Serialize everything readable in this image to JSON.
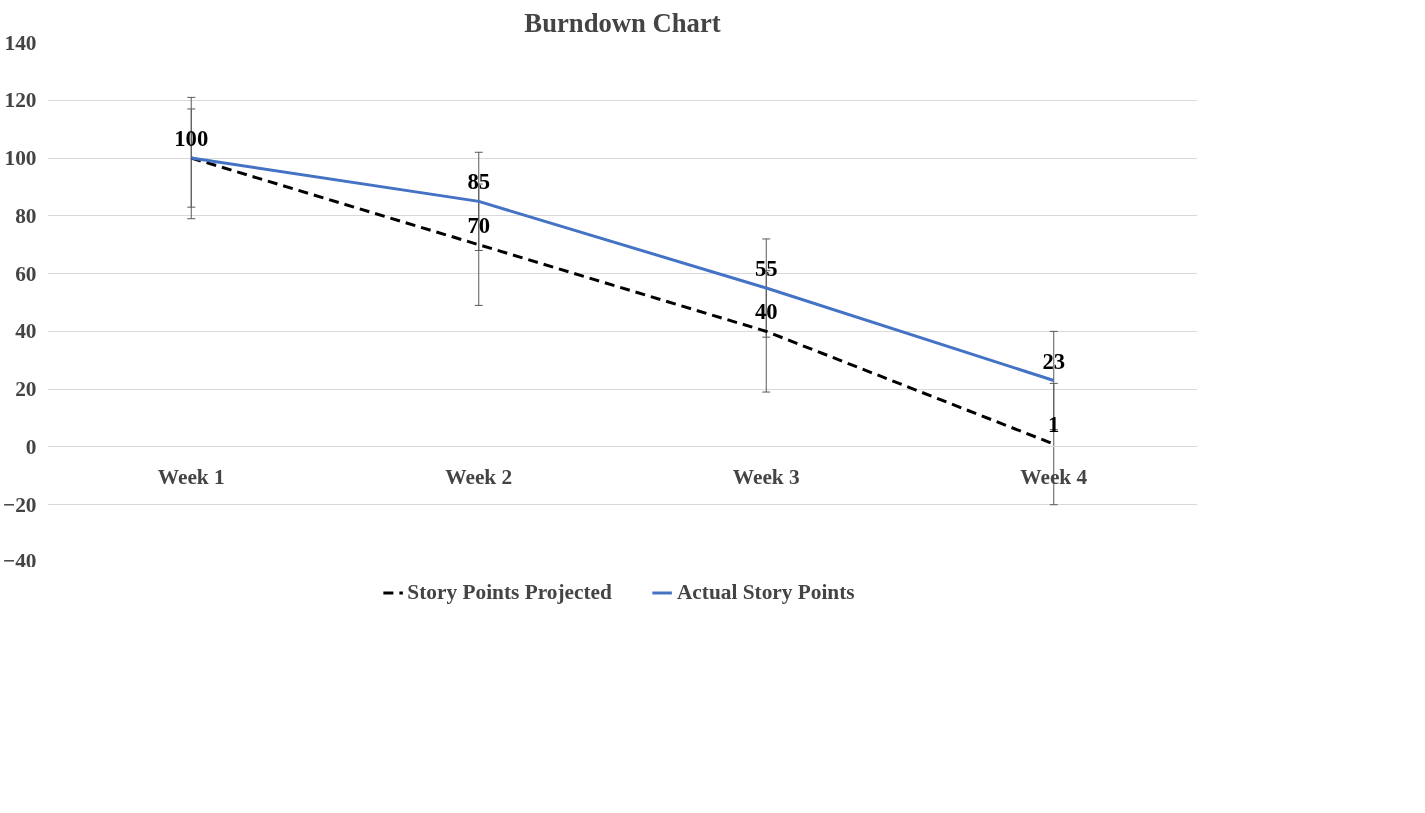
{
  "chart_data": {
    "type": "line",
    "title": "Burndown Chart",
    "categories": [
      "Week 1",
      "Week 2",
      "Week 3",
      "Week 4"
    ],
    "series": [
      {
        "name": "Story Points Projected",
        "color": "#000000",
        "line_style": "dashed",
        "values": [
          100,
          70,
          40,
          1
        ],
        "value_labels": [
          null,
          "70",
          "40",
          "1"
        ],
        "errors": [
          21,
          21,
          21,
          21
        ]
      },
      {
        "name": "Actual Story Points",
        "color": "#4472c4",
        "line_style": "solid",
        "values": [
          100,
          85,
          55,
          23
        ],
        "value_labels": [
          "100",
          "85",
          "55",
          "23"
        ],
        "errors": [
          17,
          17,
          17,
          17
        ]
      }
    ],
    "ylim": [
      -40,
      140
    ],
    "yticks": [
      -40,
      -20,
      0,
      20,
      40,
      60,
      80,
      100,
      120,
      140
    ],
    "grid": "y",
    "legend": "bottom",
    "marker": "none"
  }
}
